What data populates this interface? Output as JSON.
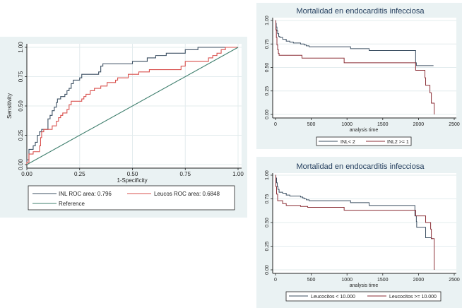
{
  "colors": {
    "panel_bg": "#eaf2f3",
    "plot_bg": "#ffffff",
    "grid": "#e6eef0",
    "series_dark": "#3b4f62",
    "series_red": "#d9514e",
    "series_maroon": "#8b2e36",
    "reference": "#3f7f6e"
  },
  "chart_data": [
    {
      "id": "roc",
      "type": "line",
      "title": "",
      "xlabel": "1-Specificity",
      "ylabel": "Sensitivity",
      "xlim": [
        0,
        1
      ],
      "ylim": [
        0,
        1
      ],
      "xticks": [
        "0.00",
        "0.25",
        "0.50",
        "0.75",
        "1.00"
      ],
      "yticks": [
        "0.00",
        "0.25",
        "0.50",
        "0.75",
        "1.00"
      ],
      "grid": true,
      "legend_position": "bottom",
      "series": [
        {
          "name": "INL ROC area: 0.796",
          "color_key": "series_dark",
          "step": true,
          "points": [
            [
              0,
              0
            ],
            [
              0,
              0.04
            ],
            [
              0.01,
              0.04
            ],
            [
              0.01,
              0.13
            ],
            [
              0.03,
              0.13
            ],
            [
              0.03,
              0.16
            ],
            [
              0.04,
              0.16
            ],
            [
              0.04,
              0.19
            ],
            [
              0.05,
              0.19
            ],
            [
              0.05,
              0.25
            ],
            [
              0.06,
              0.25
            ],
            [
              0.06,
              0.28
            ],
            [
              0.07,
              0.28
            ],
            [
              0.07,
              0.3
            ],
            [
              0.1,
              0.3
            ],
            [
              0.1,
              0.39
            ],
            [
              0.11,
              0.39
            ],
            [
              0.11,
              0.42
            ],
            [
              0.12,
              0.42
            ],
            [
              0.12,
              0.46
            ],
            [
              0.13,
              0.46
            ],
            [
              0.13,
              0.49
            ],
            [
              0.14,
              0.49
            ],
            [
              0.14,
              0.53
            ],
            [
              0.145,
              0.53
            ],
            [
              0.145,
              0.56
            ],
            [
              0.16,
              0.56
            ],
            [
              0.16,
              0.58
            ],
            [
              0.18,
              0.58
            ],
            [
              0.18,
              0.6
            ],
            [
              0.19,
              0.6
            ],
            [
              0.19,
              0.63
            ],
            [
              0.2,
              0.63
            ],
            [
              0.2,
              0.65
            ],
            [
              0.21,
              0.65
            ],
            [
              0.21,
              0.69
            ],
            [
              0.22,
              0.69
            ],
            [
              0.22,
              0.72
            ],
            [
              0.25,
              0.72
            ],
            [
              0.25,
              0.74
            ],
            [
              0.26,
              0.74
            ],
            [
              0.26,
              0.77
            ],
            [
              0.34,
              0.77
            ],
            [
              0.34,
              0.79
            ],
            [
              0.35,
              0.79
            ],
            [
              0.35,
              0.84
            ],
            [
              0.36,
              0.84
            ],
            [
              0.36,
              0.86
            ],
            [
              0.5,
              0.86
            ],
            [
              0.5,
              0.88
            ],
            [
              0.57,
              0.88
            ],
            [
              0.57,
              0.91
            ],
            [
              0.61,
              0.91
            ],
            [
              0.61,
              0.93
            ],
            [
              0.66,
              0.93
            ],
            [
              0.66,
              0.95
            ],
            [
              0.75,
              0.95
            ],
            [
              0.75,
              0.98
            ],
            [
              0.81,
              0.98
            ],
            [
              0.81,
              1.0
            ],
            [
              1.0,
              1.0
            ]
          ]
        },
        {
          "name": "Leucos ROC area: 0.6848",
          "color_key": "series_red",
          "step": true,
          "points": [
            [
              0,
              0
            ],
            [
              0,
              0.02
            ],
            [
              0.01,
              0.02
            ],
            [
              0.01,
              0.09
            ],
            [
              0.03,
              0.09
            ],
            [
              0.03,
              0.11
            ],
            [
              0.06,
              0.11
            ],
            [
              0.06,
              0.16
            ],
            [
              0.065,
              0.16
            ],
            [
              0.065,
              0.23
            ],
            [
              0.07,
              0.23
            ],
            [
              0.07,
              0.28
            ],
            [
              0.08,
              0.28
            ],
            [
              0.08,
              0.3
            ],
            [
              0.12,
              0.3
            ],
            [
              0.12,
              0.33
            ],
            [
              0.14,
              0.33
            ],
            [
              0.14,
              0.37
            ],
            [
              0.15,
              0.37
            ],
            [
              0.15,
              0.4
            ],
            [
              0.16,
              0.4
            ],
            [
              0.16,
              0.42
            ],
            [
              0.17,
              0.42
            ],
            [
              0.17,
              0.44
            ],
            [
              0.19,
              0.44
            ],
            [
              0.19,
              0.47
            ],
            [
              0.2,
              0.47
            ],
            [
              0.2,
              0.51
            ],
            [
              0.21,
              0.51
            ],
            [
              0.21,
              0.54
            ],
            [
              0.26,
              0.54
            ],
            [
              0.26,
              0.56
            ],
            [
              0.27,
              0.56
            ],
            [
              0.27,
              0.58
            ],
            [
              0.28,
              0.58
            ],
            [
              0.28,
              0.6
            ],
            [
              0.3,
              0.6
            ],
            [
              0.3,
              0.63
            ],
            [
              0.32,
              0.63
            ],
            [
              0.32,
              0.65
            ],
            [
              0.35,
              0.65
            ],
            [
              0.35,
              0.67
            ],
            [
              0.38,
              0.67
            ],
            [
              0.38,
              0.7
            ],
            [
              0.42,
              0.7
            ],
            [
              0.42,
              0.72
            ],
            [
              0.43,
              0.72
            ],
            [
              0.43,
              0.74
            ],
            [
              0.48,
              0.74
            ],
            [
              0.48,
              0.77
            ],
            [
              0.53,
              0.77
            ],
            [
              0.53,
              0.79
            ],
            [
              0.58,
              0.79
            ],
            [
              0.58,
              0.81
            ],
            [
              0.73,
              0.81
            ],
            [
              0.73,
              0.84
            ],
            [
              0.75,
              0.84
            ],
            [
              0.75,
              0.88
            ],
            [
              0.86,
              0.88
            ],
            [
              0.86,
              0.91
            ],
            [
              0.88,
              0.91
            ],
            [
              0.88,
              0.93
            ],
            [
              0.9,
              0.93
            ],
            [
              0.9,
              0.95
            ],
            [
              0.92,
              0.95
            ],
            [
              0.92,
              0.98
            ],
            [
              0.94,
              0.98
            ],
            [
              0.94,
              1.0
            ],
            [
              1.0,
              1.0
            ]
          ]
        },
        {
          "name": "Reference",
          "color_key": "reference",
          "step": false,
          "points": [
            [
              0,
              0
            ],
            [
              1,
              1
            ]
          ]
        }
      ]
    },
    {
      "id": "km-inl",
      "type": "line",
      "title": "Mortalidad en endocarditis infecciosa",
      "xlabel": "analysis time",
      "ylabel": "",
      "xlim": [
        0,
        2500
      ],
      "ylim": [
        0,
        1
      ],
      "xticks": [
        "0",
        "500",
        "1000",
        "1500",
        "2000",
        "2500"
      ],
      "yticks": [
        "0.00",
        "0.25",
        "0.50",
        "0.75",
        "1.00"
      ],
      "grid": true,
      "legend_position": "bottom",
      "series": [
        {
          "name": "INL< 2",
          "color_key": "series_dark",
          "step": true,
          "points": [
            [
              0,
              1.0
            ],
            [
              5,
              0.97
            ],
            [
              10,
              0.93
            ],
            [
              20,
              0.89
            ],
            [
              30,
              0.86
            ],
            [
              45,
              0.83
            ],
            [
              60,
              0.82
            ],
            [
              100,
              0.8
            ],
            [
              150,
              0.78
            ],
            [
              200,
              0.77
            ],
            [
              250,
              0.76
            ],
            [
              350,
              0.75
            ],
            [
              400,
              0.74
            ],
            [
              430,
              0.73
            ],
            [
              470,
              0.72
            ],
            [
              1050,
              0.7
            ],
            [
              1310,
              0.68
            ],
            [
              1960,
              0.67
            ],
            [
              1960,
              0.55
            ],
            [
              1970,
              0.52
            ],
            [
              2210,
              0.52
            ]
          ]
        },
        {
          "name": "INL2 >= 1",
          "color_key": "series_maroon",
          "step": true,
          "points": [
            [
              0,
              1.0
            ],
            [
              5,
              0.9
            ],
            [
              12,
              0.82
            ],
            [
              20,
              0.74
            ],
            [
              30,
              0.69
            ],
            [
              40,
              0.65
            ],
            [
              50,
              0.63
            ],
            [
              370,
              0.6
            ],
            [
              960,
              0.55
            ],
            [
              1960,
              0.47
            ],
            [
              2090,
              0.39
            ],
            [
              2100,
              0.31
            ],
            [
              2160,
              0.23
            ],
            [
              2180,
              0.12
            ],
            [
              2220,
              0.0
            ]
          ]
        }
      ]
    },
    {
      "id": "km-leucocitos",
      "type": "line",
      "title": "Mortalidad en endocarditis infecciosa",
      "xlabel": "analysis time",
      "ylabel": "",
      "xlim": [
        0,
        2500
      ],
      "ylim": [
        0,
        1
      ],
      "xticks": [
        "0",
        "500",
        "1000",
        "1500",
        "2000",
        "2500"
      ],
      "yticks": [
        "0.00",
        "0.25",
        "0.50",
        "0.75",
        "1.00"
      ],
      "grid": true,
      "legend_position": "bottom",
      "series": [
        {
          "name": "Leucocitos < 10.000",
          "color_key": "series_dark",
          "step": true,
          "points": [
            [
              0,
              1.0
            ],
            [
              5,
              0.97
            ],
            [
              15,
              0.92
            ],
            [
              25,
              0.88
            ],
            [
              35,
              0.85
            ],
            [
              50,
              0.82
            ],
            [
              100,
              0.81
            ],
            [
              150,
              0.79
            ],
            [
              200,
              0.78
            ],
            [
              350,
              0.77
            ],
            [
              380,
              0.76
            ],
            [
              400,
              0.75
            ],
            [
              430,
              0.74
            ],
            [
              470,
              0.73
            ],
            [
              1050,
              0.71
            ],
            [
              1310,
              0.68
            ],
            [
              1950,
              0.67
            ],
            [
              1950,
              0.57
            ],
            [
              1970,
              0.51
            ],
            [
              1975,
              0.45
            ],
            [
              2100,
              0.34
            ],
            [
              2180,
              0.33
            ],
            [
              2200,
              0.33
            ]
          ]
        },
        {
          "name": "Leucocitos >= 10.000",
          "color_key": "series_maroon",
          "step": true,
          "points": [
            [
              0,
              1.0
            ],
            [
              5,
              0.88
            ],
            [
              15,
              0.8
            ],
            [
              30,
              0.73
            ],
            [
              100,
              0.7
            ],
            [
              150,
              0.68
            ],
            [
              350,
              0.67
            ],
            [
              450,
              0.66
            ],
            [
              960,
              0.63
            ],
            [
              1950,
              0.63
            ],
            [
              1960,
              0.57
            ],
            [
              2100,
              0.5
            ],
            [
              2170,
              0.43
            ],
            [
              2180,
              0.33
            ],
            [
              2220,
              0.0
            ]
          ]
        }
      ]
    }
  ]
}
